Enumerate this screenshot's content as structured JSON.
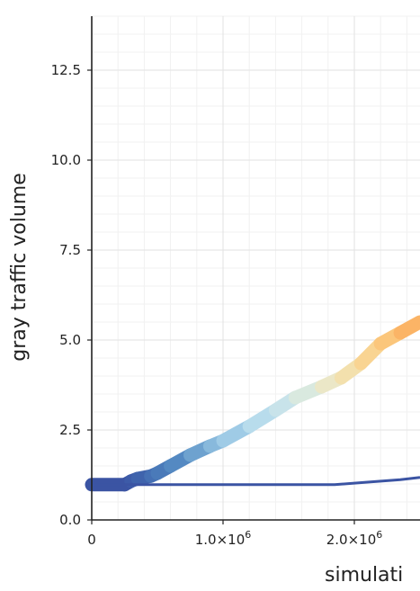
{
  "chart_data": {
    "type": "line",
    "title": "",
    "xlabel": "simulati",
    "ylabel": "gray traffic volume",
    "xlim": [
      0,
      2500000
    ],
    "ylim": [
      0,
      14
    ],
    "x_ticks": [
      {
        "value": 0,
        "label": "0",
        "mantissa": "",
        "exponent": ""
      },
      {
        "value": 1000000,
        "label": "",
        "mantissa": "1.0×10",
        "exponent": "6"
      },
      {
        "value": 2000000,
        "label": "",
        "mantissa": "2.0×10",
        "exponent": "6"
      }
    ],
    "y_ticks": [
      {
        "value": 0,
        "label": "0.0"
      },
      {
        "value": 2.5,
        "label": "2.5"
      },
      {
        "value": 5,
        "label": "5.0"
      },
      {
        "value": 7.5,
        "label": "7.5"
      },
      {
        "value": 10,
        "label": "10.0"
      },
      {
        "value": 12.5,
        "label": "12.5"
      }
    ],
    "grid": true,
    "series": [
      {
        "style": "thick-gradient",
        "points": [
          {
            "x": 0,
            "y": 0.98,
            "color": "#3b54a3"
          },
          {
            "x": 250000,
            "y": 0.98,
            "color": "#3b54a3"
          },
          {
            "x": 300000,
            "y": 1.08,
            "color": "#3d5ba8"
          },
          {
            "x": 350000,
            "y": 1.15,
            "color": "#3f63ac"
          },
          {
            "x": 450000,
            "y": 1.22,
            "color": "#4570b4"
          },
          {
            "x": 500000,
            "y": 1.3,
            "color": "#4a7ab9"
          },
          {
            "x": 600000,
            "y": 1.5,
            "color": "#5489c2"
          },
          {
            "x": 750000,
            "y": 1.8,
            "color": "#6ea2cf"
          },
          {
            "x": 900000,
            "y": 2.05,
            "color": "#88b9dc"
          },
          {
            "x": 1000000,
            "y": 2.2,
            "color": "#9fcbe6"
          },
          {
            "x": 1200000,
            "y": 2.6,
            "color": "#b8dcec"
          },
          {
            "x": 1400000,
            "y": 3.05,
            "color": "#c8e3ea"
          },
          {
            "x": 1550000,
            "y": 3.4,
            "color": "#d9e9df"
          },
          {
            "x": 1750000,
            "y": 3.7,
            "color": "#ebe7c7"
          },
          {
            "x": 1900000,
            "y": 3.95,
            "color": "#f3e0ad"
          },
          {
            "x": 2050000,
            "y": 4.35,
            "color": "#f9d492"
          },
          {
            "x": 2200000,
            "y": 4.9,
            "color": "#fbc67b"
          },
          {
            "x": 2350000,
            "y": 5.2,
            "color": "#fbb466"
          },
          {
            "x": 2500000,
            "y": 5.5,
            "color": "#fba95a"
          }
        ]
      },
      {
        "style": "thin",
        "color": "#3b54a3",
        "points": [
          {
            "x": 0,
            "y": 0.98
          },
          {
            "x": 1850000,
            "y": 0.98
          },
          {
            "x": 2100000,
            "y": 1.05
          },
          {
            "x": 2350000,
            "y": 1.12
          },
          {
            "x": 2500000,
            "y": 1.18
          }
        ]
      }
    ]
  }
}
